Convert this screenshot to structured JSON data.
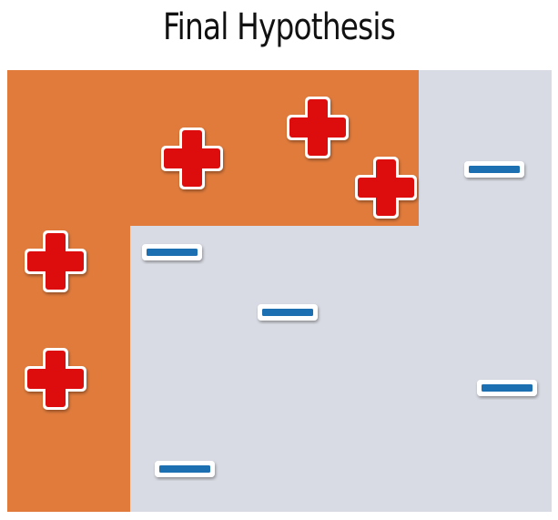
{
  "title": "Final Hypothesis",
  "colors": {
    "positive_region": "#e07b3c",
    "negative_region": "#d9dbe4",
    "plus": "#dd1010",
    "minus": "#1f6fb2"
  },
  "points": [
    {
      "label": "+"
    },
    {
      "label": "+"
    },
    {
      "label": "+"
    },
    {
      "label": "+"
    },
    {
      "label": "+"
    },
    {
      "label": "-"
    },
    {
      "label": "-"
    },
    {
      "label": "-"
    },
    {
      "label": "-"
    },
    {
      "label": "-"
    }
  ]
}
